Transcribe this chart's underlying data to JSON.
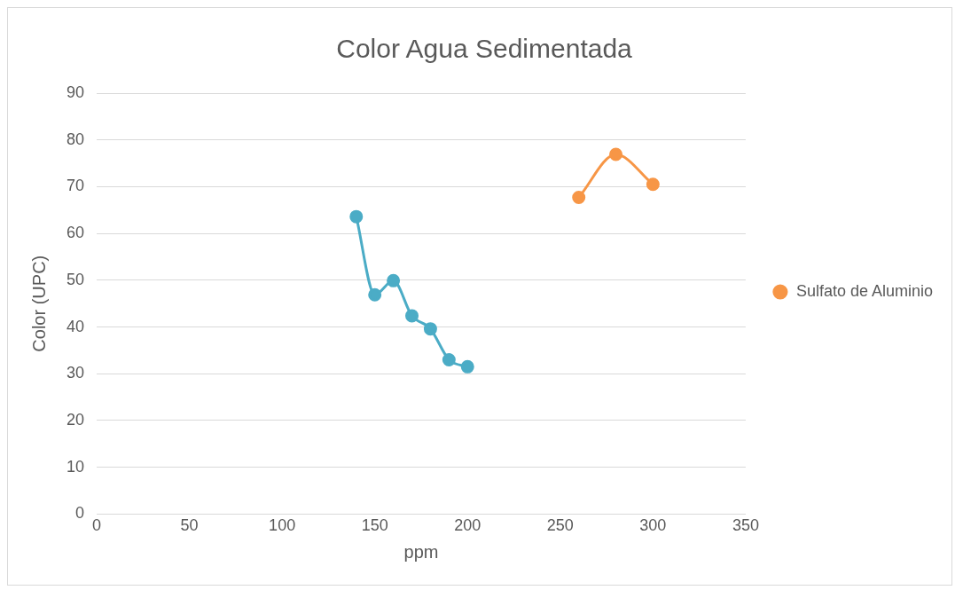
{
  "chart_data": {
    "type": "line",
    "title": "Color Agua Sedimentada",
    "xlabel": "ppm",
    "ylabel": "Color (UPC)",
    "series": [
      {
        "name": "Sulfato de Aluminio",
        "color": "#f79646",
        "x": [
          260,
          280,
          300
        ],
        "values": [
          67.7,
          76.9,
          70.5
        ]
      },
      {
        "color": "#4bacc6",
        "x": [
          140,
          150,
          160,
          170,
          180,
          190,
          200
        ],
        "values": [
          63.6,
          46.9,
          49.9,
          42.4,
          39.6,
          33.0,
          31.5
        ]
      }
    ],
    "xlim": [
      0,
      350
    ],
    "xticks": [
      0,
      50,
      100,
      150,
      200,
      250,
      300,
      350
    ],
    "ylim": [
      0,
      90
    ],
    "yticks": [
      0,
      10,
      20,
      30,
      40,
      50,
      60,
      70,
      80,
      90
    ],
    "grid": "y",
    "legend": "right",
    "marker": "circle",
    "line_style": "solid"
  }
}
